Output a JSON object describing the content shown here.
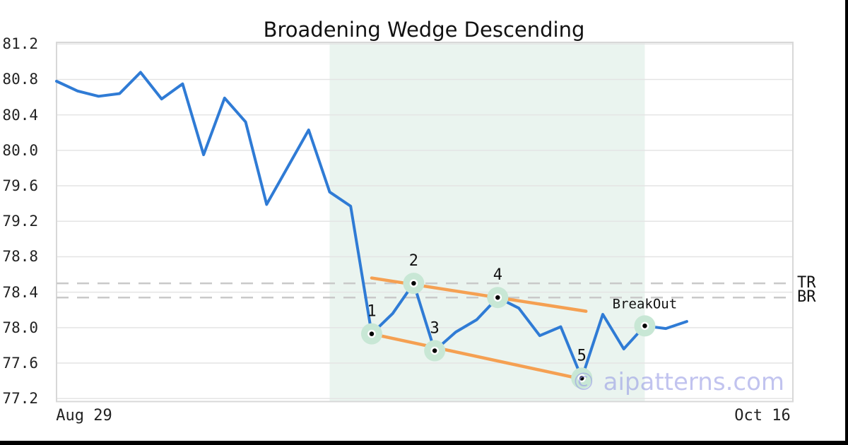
{
  "watermark": "© aipatterns.com",
  "colors": {
    "line": "#2f7bd5",
    "trendline": "#f5a052",
    "highlight": "#eaf4ef",
    "marker_halo": "#c8e7d5",
    "marker_dot": "#000000",
    "marker_ring": "#ffffff",
    "level_dash": "#c9c9c9",
    "grid": "#e4e4e4",
    "spine": "#d8d8d8",
    "watermark": "#989ce5",
    "frame": "#000000",
    "label_text": "#111111"
  },
  "chart_data": {
    "type": "line",
    "title": "Broadening Wedge Descending",
    "xlabel": "",
    "ylabel": "",
    "ylim": [
      77.2,
      81.2
    ],
    "grid": true,
    "legend": false,
    "y_ticks": [
      81.2,
      80.8,
      80.4,
      80.0,
      79.6,
      79.2,
      78.8,
      78.4,
      78.0,
      77.6,
      77.2
    ],
    "x_tick_labels": [
      "Aug 29",
      "Oct 16"
    ],
    "series": [
      {
        "name": "price",
        "points": [
          [
            0,
            80.78
          ],
          [
            1,
            80.67
          ],
          [
            2,
            80.61
          ],
          [
            3,
            80.64
          ],
          [
            4,
            80.88
          ],
          [
            5,
            80.58
          ],
          [
            6,
            80.75
          ],
          [
            7,
            79.95
          ],
          [
            8,
            80.59
          ],
          [
            9,
            80.32
          ],
          [
            10,
            79.39
          ],
          [
            12,
            80.23
          ],
          [
            13,
            79.53
          ],
          [
            14,
            79.37
          ],
          [
            15,
            77.93
          ],
          [
            16,
            78.16
          ],
          [
            17,
            78.5
          ],
          [
            18,
            77.74
          ],
          [
            19,
            77.95
          ],
          [
            20,
            78.09
          ],
          [
            21,
            78.34
          ],
          [
            22,
            78.22
          ],
          [
            23,
            77.91
          ],
          [
            24,
            78.01
          ],
          [
            25,
            77.43
          ],
          [
            26,
            78.15
          ],
          [
            27,
            77.76
          ],
          [
            28,
            78.02
          ],
          [
            29,
            77.99
          ],
          [
            30,
            78.07
          ]
        ]
      }
    ],
    "pattern_points": [
      {
        "label": "1",
        "day": 15,
        "value": 77.93
      },
      {
        "label": "2",
        "day": 17,
        "value": 78.5
      },
      {
        "label": "3",
        "day": 18,
        "value": 77.74
      },
      {
        "label": "4",
        "day": 21,
        "value": 78.34
      },
      {
        "label": "5",
        "day": 25,
        "value": 77.43
      },
      {
        "label": "BreakOut",
        "day": 28,
        "value": 78.02
      }
    ],
    "trendlines": [
      {
        "name": "upper",
        "from": [
          15,
          78.56
        ],
        "to": [
          25.2,
          78.185
        ]
      },
      {
        "name": "lower",
        "from": [
          15,
          77.93
        ],
        "to": [
          25.3,
          77.405
        ]
      }
    ],
    "levels": [
      {
        "label": "TR",
        "value": 78.5
      },
      {
        "label": "BR",
        "value": 78.34
      }
    ],
    "highlight_region": {
      "from_day": 13,
      "to_day": 28
    }
  }
}
